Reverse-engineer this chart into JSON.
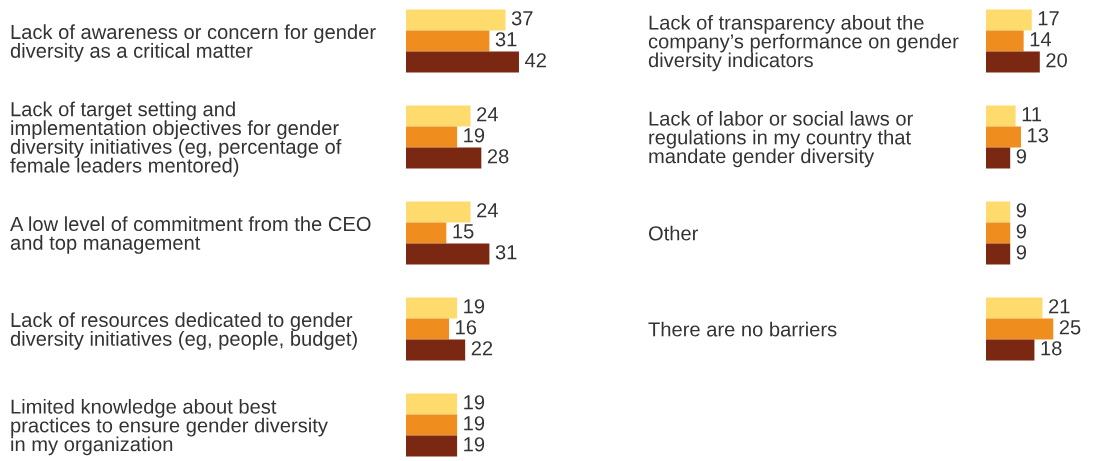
{
  "chart_data": [
    {
      "type": "bar",
      "orientation": "horizontal",
      "data_labels": true,
      "tick_labels": "y",
      "categories": [
        "Lack of awareness or concern for gender\ndiversity as a critical matter",
        "Lack of target setting and\nimplementation objectives for gender\ndiversity initiatives (eg, percentage of\nfemale leaders mentored)",
        "A low level of commitment from the CEO\nand top management",
        "Lack of resources dedicated to gender\ndiversity initiatives (eg, people, budget)",
        "Limited knowledge about best\npractices to ensure gender diversity\nin my organization"
      ],
      "series": [
        {
          "color": "#fddb6c",
          "values": [
            37,
            24,
            24,
            19,
            19
          ]
        },
        {
          "color": "#f08d1f",
          "values": [
            31,
            19,
            15,
            16,
            19
          ]
        },
        {
          "color": "#7b2812",
          "values": [
            42,
            28,
            31,
            22,
            19
          ]
        }
      ]
    },
    {
      "type": "bar",
      "orientation": "horizontal",
      "data_labels": true,
      "tick_labels": "y",
      "categories": [
        "Lack of transparency about the\ncompany’s performance on gender\ndiversity indicators",
        "Lack of labor or social laws or\nregulations in my country that\nmandate gender diversity",
        "Other",
        "There are no barriers"
      ],
      "series": [
        {
          "color": "#fddb6c",
          "values": [
            17,
            11,
            9,
            21
          ]
        },
        {
          "color": "#f08d1f",
          "values": [
            14,
            13,
            9,
            25
          ]
        },
        {
          "color": "#7b2812",
          "values": [
            20,
            9,
            9,
            18
          ]
        }
      ]
    }
  ]
}
